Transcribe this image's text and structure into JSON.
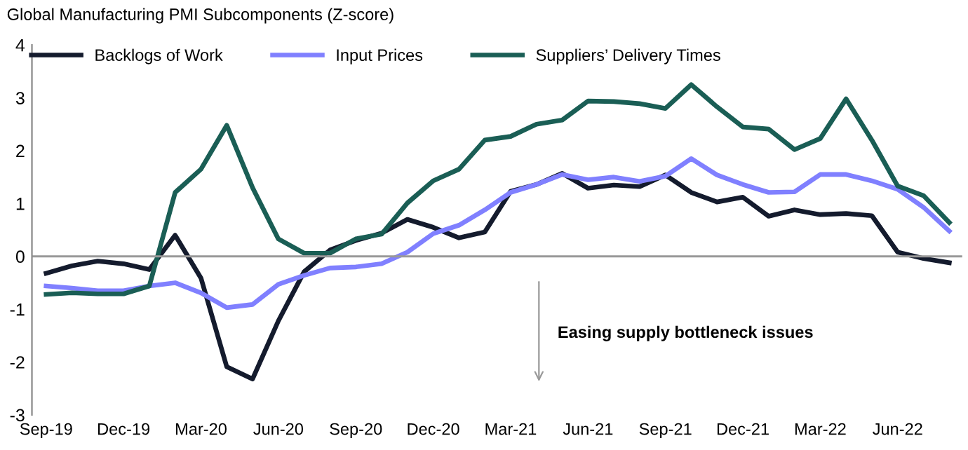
{
  "chart_data": {
    "type": "line",
    "title": "Global Manufacturing PMI Subcomponents (Z-score)",
    "categories": [
      "Sep-19",
      null,
      null,
      "Dec-19",
      null,
      null,
      "Mar-20",
      null,
      null,
      "Jun-20",
      null,
      null,
      "Sep-20",
      null,
      null,
      "Dec-20",
      null,
      null,
      "Mar-21",
      null,
      null,
      "Jun-21",
      null,
      null,
      "Sep-21",
      null,
      null,
      "Dec-21",
      null,
      null,
      "Mar-22",
      null,
      null,
      "Jun-22",
      null,
      null
    ],
    "series": [
      {
        "name": "Backlogs of Work",
        "color": "#141b2d",
        "values": [
          -0.32,
          -0.18,
          -0.09,
          -0.14,
          -0.25,
          0.4,
          -0.41,
          -2.09,
          -2.32,
          -1.22,
          -0.29,
          0.12,
          0.3,
          0.44,
          0.7,
          0.55,
          0.35,
          0.46,
          1.23,
          1.36,
          1.57,
          1.29,
          1.35,
          1.32,
          1.54,
          1.21,
          1.03,
          1.12,
          0.76,
          0.88,
          0.79,
          0.81,
          0.77,
          0.08,
          -0.04,
          -0.12
        ]
      },
      {
        "name": "Input Prices",
        "color": "#8080ff",
        "values": [
          -0.56,
          -0.6,
          -0.65,
          -0.65,
          -0.56,
          -0.5,
          -0.69,
          -0.97,
          -0.91,
          -0.53,
          -0.36,
          -0.22,
          -0.2,
          -0.14,
          0.08,
          0.43,
          0.59,
          0.88,
          1.21,
          1.36,
          1.55,
          1.45,
          1.5,
          1.42,
          1.52,
          1.85,
          1.54,
          1.36,
          1.21,
          1.22,
          1.55,
          1.55,
          1.43,
          1.27,
          0.93,
          0.48
        ]
      },
      {
        "name": "Suppliers’ Delivery Times",
        "color": "#1a5e55",
        "values": [
          -0.72,
          -0.69,
          -0.71,
          -0.71,
          -0.56,
          1.21,
          1.65,
          2.48,
          1.3,
          0.33,
          0.06,
          0.06,
          0.33,
          0.42,
          1.01,
          1.43,
          1.65,
          2.2,
          2.27,
          2.5,
          2.58,
          2.94,
          2.93,
          2.89,
          2.8,
          3.25,
          2.83,
          2.45,
          2.41,
          2.02,
          2.23,
          2.98,
          2.2,
          1.33,
          1.15,
          0.64
        ]
      }
    ],
    "ylim": [
      -3,
      4
    ],
    "yticks": [
      -3,
      -2,
      -1,
      0,
      1,
      2,
      3,
      4
    ],
    "annotations": [
      "Easing supply bottleneck issues"
    ],
    "ref_lines": [
      {
        "axis": "y",
        "value": 0,
        "color": "#999999"
      }
    ],
    "legend": "top",
    "grid": false,
    "marker": "none",
    "line_style": "solid"
  }
}
